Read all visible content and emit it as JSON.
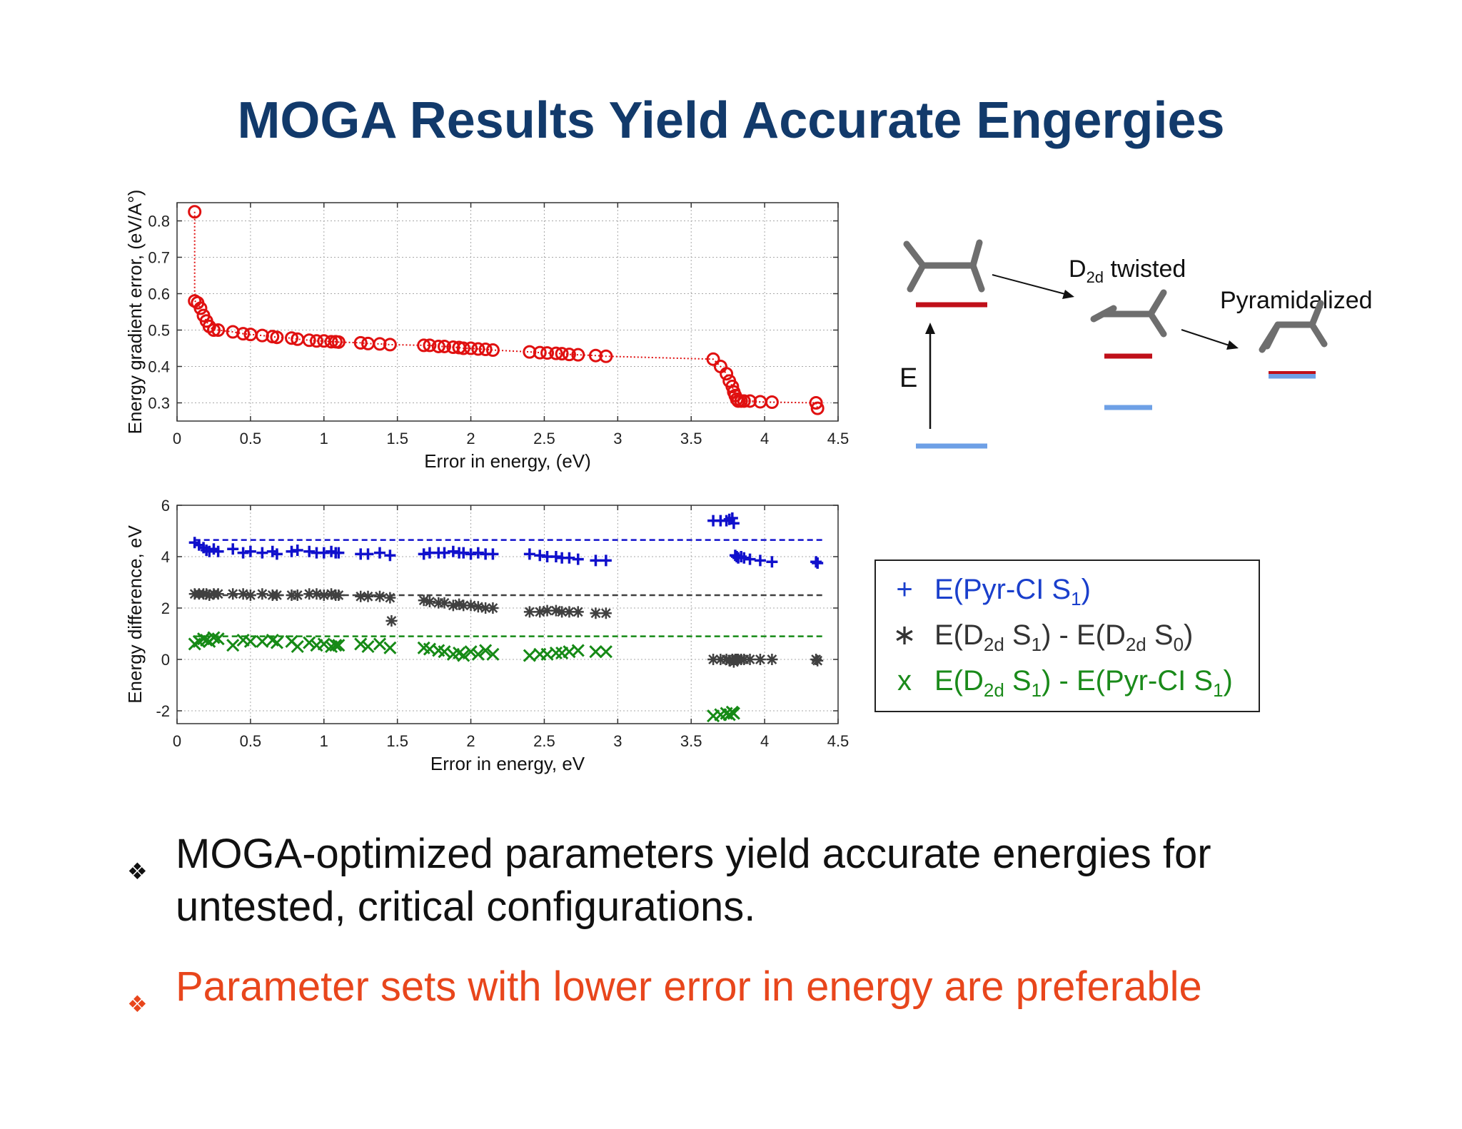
{
  "slide": {
    "title": "MOGA Results Yield Accurate Engergies"
  },
  "chart_data": [
    {
      "type": "scatter",
      "xlabel": "Error in energy, (eV)",
      "ylabel": "Energy gradient error, (eV/A°)",
      "xlim": [
        0,
        4.5
      ],
      "ylim": [
        0.25,
        0.85
      ],
      "xticks": [
        "0",
        "0.5",
        "1",
        "1.5",
        "2",
        "2.5",
        "3",
        "3.5",
        "4",
        "4.5"
      ],
      "yticks": [
        "0.3",
        "0.4",
        "0.5",
        "0.6",
        "0.7",
        "0.8"
      ],
      "grid": true,
      "color": "#e01010",
      "series": [
        {
          "marker": "circle",
          "line": "dotted",
          "x": [
            0.12,
            0.12,
            0.14,
            0.16,
            0.18,
            0.2,
            0.22,
            0.25,
            0.28,
            0.38,
            0.45,
            0.5,
            0.58,
            0.65,
            0.68,
            0.78,
            0.82,
            0.9,
            0.95,
            1.0,
            1.05,
            1.08,
            1.1,
            1.25,
            1.3,
            1.38,
            1.45,
            1.68,
            1.72,
            1.78,
            1.82,
            1.88,
            1.92,
            1.95,
            2.0,
            2.05,
            2.1,
            2.15,
            2.4,
            2.47,
            2.52,
            2.58,
            2.62,
            2.67,
            2.73,
            2.85,
            2.92,
            3.65,
            3.7,
            3.74,
            3.76,
            3.78,
            3.79,
            3.8,
            3.81,
            3.82,
            3.84,
            3.86,
            3.9,
            3.97,
            4.05,
            4.35,
            4.36
          ],
          "y": [
            0.825,
            0.58,
            0.575,
            0.56,
            0.54,
            0.525,
            0.51,
            0.5,
            0.5,
            0.495,
            0.49,
            0.488,
            0.485,
            0.482,
            0.48,
            0.478,
            0.475,
            0.472,
            0.47,
            0.47,
            0.468,
            0.468,
            0.467,
            0.465,
            0.463,
            0.462,
            0.46,
            0.458,
            0.458,
            0.455,
            0.455,
            0.453,
            0.452,
            0.45,
            0.45,
            0.448,
            0.447,
            0.445,
            0.44,
            0.438,
            0.437,
            0.436,
            0.435,
            0.433,
            0.432,
            0.43,
            0.428,
            0.42,
            0.4,
            0.38,
            0.36,
            0.345,
            0.33,
            0.32,
            0.31,
            0.305,
            0.305,
            0.305,
            0.305,
            0.303,
            0.302,
            0.3,
            0.285
          ]
        }
      ]
    },
    {
      "type": "scatter",
      "xlabel": "Error in energy, eV",
      "ylabel": "Energy difference, eV",
      "xlim": [
        0,
        4.5
      ],
      "ylim": [
        -2.5,
        6
      ],
      "xticks": [
        "0",
        "0.5",
        "1",
        "1.5",
        "2",
        "2.5",
        "3",
        "3.5",
        "4",
        "4.5"
      ],
      "yticks": [
        "-2",
        "0",
        "2",
        "4",
        "6"
      ],
      "grid": true,
      "series": [
        {
          "name": "E(Pyr-CI S1)",
          "marker": "plus",
          "color": "#1010cc",
          "reference_y": 4.65,
          "x": [
            0.12,
            0.15,
            0.18,
            0.2,
            0.22,
            0.25,
            0.28,
            0.38,
            0.45,
            0.5,
            0.58,
            0.65,
            0.68,
            0.78,
            0.82,
            0.9,
            0.95,
            1.0,
            1.05,
            1.08,
            1.1,
            1.25,
            1.3,
            1.38,
            1.45,
            1.68,
            1.72,
            1.78,
            1.82,
            1.88,
            1.92,
            1.95,
            2.0,
            2.05,
            2.1,
            2.15,
            2.4,
            2.47,
            2.52,
            2.58,
            2.62,
            2.67,
            2.73,
            2.85,
            2.92,
            3.65,
            3.7,
            3.74,
            3.76,
            3.78,
            3.79,
            3.8,
            3.81,
            3.82,
            3.84,
            3.86,
            3.9,
            3.97,
            4.05,
            4.35,
            4.36
          ],
          "y": [
            4.55,
            4.45,
            4.35,
            4.25,
            4.2,
            4.3,
            4.2,
            4.3,
            4.15,
            4.2,
            4.15,
            4.2,
            4.1,
            4.2,
            4.25,
            4.2,
            4.15,
            4.15,
            4.2,
            4.15,
            4.15,
            4.1,
            4.1,
            4.15,
            4.05,
            4.1,
            4.15,
            4.15,
            4.15,
            4.2,
            4.15,
            4.15,
            4.1,
            4.15,
            4.1,
            4.1,
            4.1,
            4.05,
            4.0,
            4.0,
            3.95,
            3.95,
            3.9,
            3.85,
            3.85,
            5.4,
            5.4,
            5.4,
            5.45,
            5.5,
            5.3,
            4.05,
            4.0,
            3.95,
            4.0,
            3.95,
            3.9,
            3.85,
            3.8,
            3.8,
            3.75
          ]
        },
        {
          "name": "E(D2d S1) - E(D2d S0)",
          "marker": "asterisk",
          "color": "#404040",
          "reference_y": 2.5,
          "x": [
            0.12,
            0.15,
            0.18,
            0.2,
            0.22,
            0.25,
            0.28,
            0.38,
            0.45,
            0.5,
            0.58,
            0.65,
            0.68,
            0.78,
            0.82,
            0.9,
            0.95,
            1.0,
            1.05,
            1.08,
            1.1,
            1.25,
            1.3,
            1.38,
            1.45,
            1.46,
            1.68,
            1.72,
            1.78,
            1.82,
            1.88,
            1.92,
            1.95,
            2.0,
            2.05,
            2.1,
            2.15,
            2.4,
            2.47,
            2.52,
            2.58,
            2.62,
            2.67,
            2.73,
            2.85,
            2.92,
            3.65,
            3.7,
            3.74,
            3.76,
            3.78,
            3.79,
            3.8,
            3.81,
            3.82,
            3.84,
            3.86,
            3.9,
            3.97,
            4.05,
            4.35,
            4.36
          ],
          "y": [
            2.55,
            2.55,
            2.55,
            2.55,
            2.5,
            2.55,
            2.55,
            2.55,
            2.55,
            2.5,
            2.55,
            2.5,
            2.5,
            2.5,
            2.5,
            2.55,
            2.55,
            2.5,
            2.55,
            2.5,
            2.5,
            2.45,
            2.45,
            2.45,
            2.4,
            1.5,
            2.3,
            2.25,
            2.2,
            2.2,
            2.1,
            2.15,
            2.1,
            2.1,
            2.05,
            2.0,
            2.0,
            1.85,
            1.85,
            1.9,
            1.9,
            1.85,
            1.85,
            1.85,
            1.8,
            1.8,
            0.0,
            0.0,
            0.0,
            -0.05,
            0.0,
            -0.1,
            0.0,
            0.0,
            0.0,
            0.0,
            0.0,
            0.0,
            0.0,
            0.0,
            0.0,
            -0.05
          ]
        },
        {
          "name": "E(D2d S1) - E(Pyr-CI S1)",
          "marker": "x",
          "color": "#168a16",
          "reference_y": 0.9,
          "x": [
            0.12,
            0.15,
            0.18,
            0.2,
            0.22,
            0.25,
            0.28,
            0.38,
            0.45,
            0.5,
            0.58,
            0.65,
            0.68,
            0.78,
            0.82,
            0.9,
            0.95,
            1.0,
            1.05,
            1.08,
            1.1,
            1.25,
            1.3,
            1.38,
            1.45,
            1.68,
            1.72,
            1.78,
            1.82,
            1.88,
            1.92,
            1.95,
            2.0,
            2.05,
            2.1,
            2.15,
            2.4,
            2.47,
            2.52,
            2.58,
            2.62,
            2.67,
            2.73,
            2.85,
            2.92,
            3.65,
            3.7,
            3.74,
            3.76,
            3.78,
            3.79
          ],
          "y": [
            0.6,
            0.7,
            0.8,
            0.75,
            0.7,
            0.85,
            0.8,
            0.55,
            0.75,
            0.7,
            0.7,
            0.75,
            0.65,
            0.7,
            0.5,
            0.65,
            0.55,
            0.6,
            0.5,
            0.55,
            0.55,
            0.6,
            0.5,
            0.6,
            0.45,
            0.45,
            0.4,
            0.35,
            0.3,
            0.2,
            0.25,
            0.15,
            0.3,
            0.2,
            0.35,
            0.2,
            0.15,
            0.2,
            0.2,
            0.25,
            0.25,
            0.3,
            0.35,
            0.3,
            0.3,
            -2.2,
            -2.15,
            -2.1,
            -2.15,
            -2.05,
            -2.1
          ]
        }
      ]
    }
  ],
  "diagram": {
    "energy_label": "E",
    "state_1_label": "twisted",
    "state_1_sub_label_base": "D",
    "state_1_sub_label_sub": "2d",
    "state_2_label": "Pyramidalized",
    "colors": {
      "upper_state": "#c0101a",
      "lower_state": "#6ea0e6",
      "molecule": "#6e6e6e"
    }
  },
  "legend": {
    "items": [
      {
        "symbol": "+",
        "color": "#1a3fcc",
        "parts": [
          "E(Pyr-CI S",
          "1",
          ")"
        ]
      },
      {
        "symbol": "∗",
        "color": "#333333",
        "parts": [
          "E(D",
          "2d",
          " S",
          "1",
          ") - E(D",
          "2d",
          " S",
          "0",
          ")"
        ]
      },
      {
        "symbol": "x",
        "color": "#1a8a1a",
        "parts": [
          "E(D",
          "2d",
          " S",
          "1",
          ") - E(Pyr-CI S",
          "1",
          ")"
        ]
      }
    ]
  },
  "bullets": [
    {
      "mark": "❖",
      "text": "MOGA-optimized parameters yield accurate energies for untested, critical configurations.",
      "color": "#111111"
    },
    {
      "mark": "❖",
      "text": "Parameter sets with lower error in energy are preferable",
      "color": "#e8461c"
    }
  ]
}
